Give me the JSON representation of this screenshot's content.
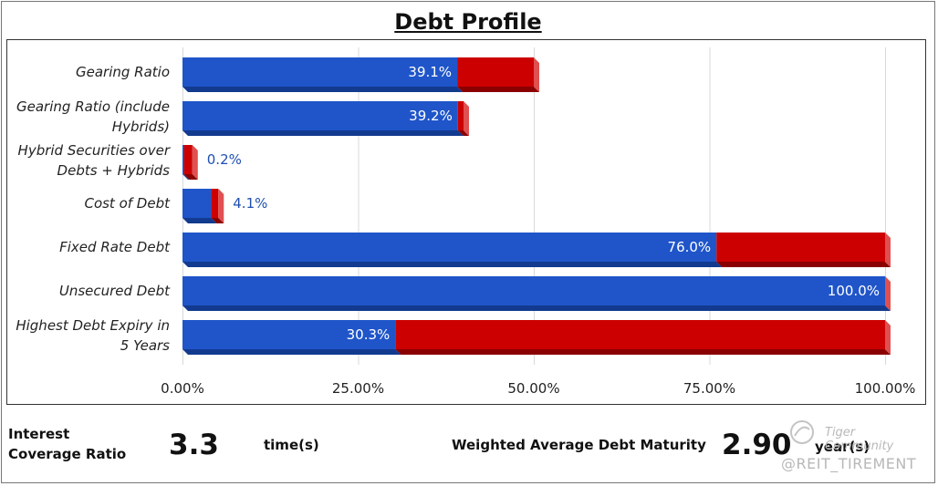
{
  "title": "Debt Profile",
  "colors": {
    "blue": "#1f55c9",
    "blue_dark": "#123a8f",
    "red": "#cc0000",
    "red_light": "#e05050",
    "grid": "#d9d9d9",
    "value_outside": "#1f4fb0"
  },
  "chart_data": {
    "type": "bar",
    "orientation": "horizontal",
    "stacked_to_100": true,
    "categories": [
      [
        "Gearing Ratio"
      ],
      [
        "Gearing Ratio (include",
        "Hybrids)"
      ],
      [
        "Hybrid Securities over",
        "Debts + Hybrids"
      ],
      [
        "Cost of Debt"
      ],
      [
        "Fixed Rate Debt"
      ],
      [
        "Unsecured Debt"
      ],
      [
        "Highest Debt Expiry in",
        "5 Years"
      ]
    ],
    "series": [
      {
        "values": [
          39.1,
          39.2,
          0.2,
          4.1,
          76.0,
          100.0,
          30.3
        ]
      },
      {
        "values": [
          10.9,
          0.8,
          1.2,
          1.0,
          24.0,
          0.0,
          69.7
        ]
      }
    ],
    "data_labels": [
      "39.1%",
      "39.2%",
      "0.2%",
      "4.1%",
      "76.0%",
      "100.0%",
      "30.3%"
    ],
    "xlim": [
      0,
      100
    ],
    "xticks": [
      0,
      25,
      50,
      75,
      100
    ],
    "xtick_labels": [
      "0.00%",
      "25.00%",
      "50.00%",
      "75.00%",
      "100.00%"
    ],
    "grid": true,
    "legend": "none"
  },
  "footer": {
    "icr_label_line1": "Interest",
    "icr_label_line2": "Coverage Ratio",
    "icr_value": "3.3",
    "icr_unit": "time(s)",
    "wadm_label": "Weighted Average Debt Maturity",
    "wadm_value": "2.90",
    "wadm_unit": "year(s)"
  },
  "watermark": {
    "brand": "Tiger Community",
    "handle": "@REIT_TIREMENT"
  }
}
